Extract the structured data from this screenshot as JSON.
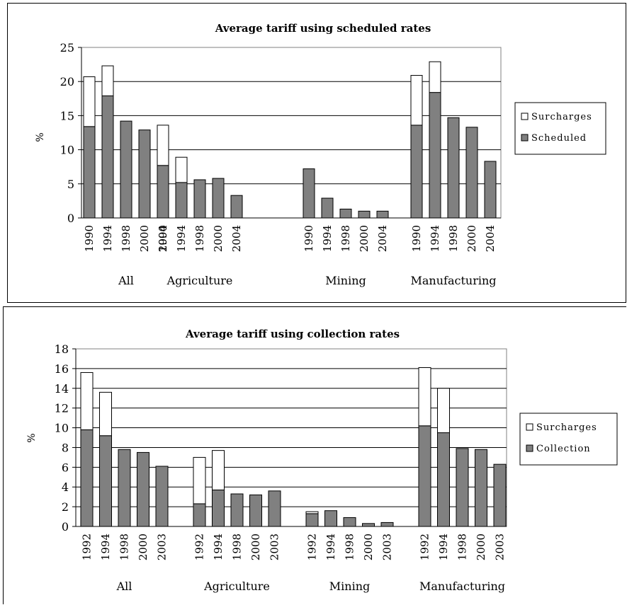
{
  "colors": {
    "primary": "#808080",
    "surcharge": "#ffffff",
    "grid": "#000000",
    "border": "#000000"
  },
  "chart_data": [
    {
      "type": "bar",
      "stacked": true,
      "title": "Average tariff using scheduled rates",
      "ylabel": "%",
      "ylim": [
        0,
        25
      ],
      "yticks": [
        0,
        5,
        10,
        15,
        20,
        25
      ],
      "grid": true,
      "legend_position": "right",
      "groups": [
        {
          "name": "All",
          "x": [
            "1990",
            "1994",
            "1998",
            "2000",
            "2004"
          ]
        },
        {
          "name": "Agriculture",
          "x": [
            "1990",
            "1994",
            "1998",
            "2000",
            "2004"
          ]
        },
        {
          "name": "Mining",
          "x": [
            "1990",
            "1994",
            "1998",
            "2000",
            "2004"
          ]
        },
        {
          "name": "Manufacturing",
          "x": [
            "1990",
            "1994",
            "1998",
            "2000",
            "2004"
          ]
        }
      ],
      "series": [
        {
          "name": "Scheduled",
          "color": "#808080",
          "values": [
            [
              13.4,
              17.9,
              14.2,
              12.9,
              7.9
            ],
            [
              7.7,
              5.2,
              5.6,
              5.8,
              3.3
            ],
            [
              7.2,
              2.9,
              1.3,
              1.0,
              1.0
            ],
            [
              13.6,
              18.4,
              14.7,
              13.3,
              8.3
            ]
          ]
        },
        {
          "name": "Surcharges",
          "color": "#ffffff",
          "values": [
            [
              7.3,
              4.4,
              0,
              0,
              0
            ],
            [
              5.9,
              3.7,
              0,
              0,
              0
            ],
            [
              0,
              0,
              0,
              0,
              0
            ],
            [
              7.3,
              4.5,
              0,
              0,
              0
            ]
          ]
        }
      ],
      "legend": [
        "Surcharges",
        "Scheduled"
      ]
    },
    {
      "type": "bar",
      "stacked": true,
      "title": "Average tariff using collection rates",
      "ylabel": "%",
      "ylim": [
        0,
        18
      ],
      "yticks": [
        0,
        2,
        4,
        6,
        8,
        10,
        12,
        14,
        16,
        18
      ],
      "grid": true,
      "legend_position": "right",
      "groups": [
        {
          "name": "All",
          "x": [
            "1992",
            "1994",
            "1998",
            "2000",
            "2003"
          ]
        },
        {
          "name": "Agriculture",
          "x": [
            "1992",
            "1994",
            "1998",
            "2000",
            "2003"
          ]
        },
        {
          "name": "Mining",
          "x": [
            "1992",
            "1994",
            "1998",
            "2000",
            "2003"
          ]
        },
        {
          "name": "Manufacturing",
          "x": [
            "1992",
            "1994",
            "1998",
            "2000",
            "2003"
          ]
        }
      ],
      "series": [
        {
          "name": "Collection",
          "color": "#808080",
          "values": [
            [
              9.8,
              9.2,
              7.8,
              7.5,
              6.1
            ],
            [
              2.3,
              3.7,
              3.3,
              3.2,
              3.6
            ],
            [
              1.3,
              1.6,
              0.9,
              0.3,
              0.4
            ],
            [
              10.2,
              9.5,
              7.9,
              7.8,
              6.3
            ]
          ]
        },
        {
          "name": "Surcharges",
          "color": "#ffffff",
          "values": [
            [
              5.8,
              4.4,
              0,
              0,
              0
            ],
            [
              4.7,
              4.0,
              0,
              0,
              0
            ],
            [
              0.2,
              0,
              0,
              0,
              0
            ],
            [
              5.9,
              4.5,
              0,
              0,
              0
            ]
          ]
        }
      ],
      "legend": [
        "Surcharges",
        "Collection"
      ]
    }
  ]
}
